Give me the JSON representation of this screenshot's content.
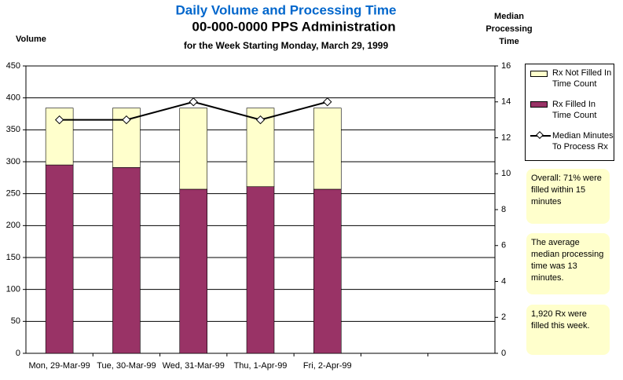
{
  "chart_data": {
    "type": "bar",
    "stacked": true,
    "title": "Daily Volume and Processing Time",
    "subtitle": "00-000-0000 PPS Administration",
    "caption": "for the Week Starting Monday, March 29, 1999",
    "y_label": "Volume",
    "y2_label": "Median Processing Time",
    "categories": [
      "Mon, 29-Mar-99",
      "Tue, 30-Mar-99",
      "Wed, 31-Mar-99",
      "Thu, 1-Apr-99",
      "Fri, 2-Apr-99",
      null,
      null
    ],
    "series": [
      {
        "name": "Rx Filled In Time Count",
        "color": "#993366",
        "values": [
          295,
          291,
          257,
          261,
          257,
          null,
          null
        ]
      },
      {
        "name": "Rx Not Filled In Time Count",
        "color": "#ffffcc",
        "values": [
          89,
          93,
          127,
          123,
          127,
          null,
          null
        ]
      },
      {
        "name": "Median Minutes To Process Rx",
        "color": "#000000",
        "type": "line",
        "axis": "y2",
        "values": [
          13,
          13,
          14,
          13,
          14,
          null,
          null
        ]
      }
    ],
    "ylim": [
      0,
      450
    ],
    "yticks": [
      0,
      50,
      100,
      150,
      200,
      250,
      300,
      350,
      400,
      450
    ],
    "y2lim": [
      0,
      16
    ],
    "y2ticks": [
      0,
      2,
      4,
      6,
      8,
      10,
      12,
      14,
      16
    ],
    "grid": true,
    "legend": "right",
    "notes": [
      "Overall:  71% were filled within 15 minutes",
      "The average median processing time was 13 minutes.",
      "1,920 Rx were filled this week."
    ]
  }
}
